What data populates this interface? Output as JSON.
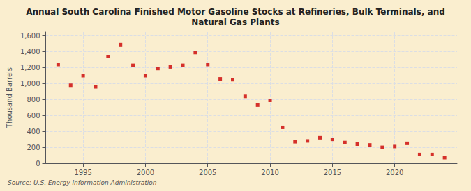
{
  "chart_data": {
    "type": "scatter",
    "title": "Annual South Carolina Finished Motor Gasoline Stocks at Refineries, Bulk Terminals, and\nNatural Gas Plants",
    "ylabel": "Thousand Barrels",
    "annotations": [
      "Source: U.S. Energy Information Administration"
    ],
    "x": [
      1993,
      1994,
      1995,
      1996,
      1997,
      1998,
      1999,
      2000,
      2001,
      2002,
      2003,
      2004,
      2005,
      2006,
      2007,
      2008,
      2009,
      2010,
      2011,
      2012,
      2013,
      2014,
      2015,
      2016,
      2017,
      2018,
      2019,
      2020,
      2021,
      2022,
      2023,
      2024
    ],
    "values": [
      1240,
      980,
      1100,
      960,
      1340,
      1490,
      1230,
      1100,
      1190,
      1210,
      1230,
      1390,
      1240,
      1060,
      1050,
      840,
      730,
      790,
      450,
      270,
      280,
      320,
      300,
      260,
      240,
      230,
      200,
      210,
      250,
      110,
      110,
      70
    ],
    "color": "#cc0000",
    "marker": "square",
    "xlim": [
      1992,
      2025
    ],
    "xticks": [
      1995,
      2000,
      2005,
      2010,
      2015,
      2020
    ],
    "ylim": [
      0,
      1650
    ],
    "yticks": [
      0,
      200,
      400,
      600,
      800,
      {
        "value": 1000,
        "label": "1,000"
      },
      {
        "value": 1200,
        "label": "1,200"
      },
      {
        "value": 1400,
        "label": "1,400"
      },
      {
        "value": 1600,
        "label": "1,600"
      }
    ],
    "grid": true
  }
}
